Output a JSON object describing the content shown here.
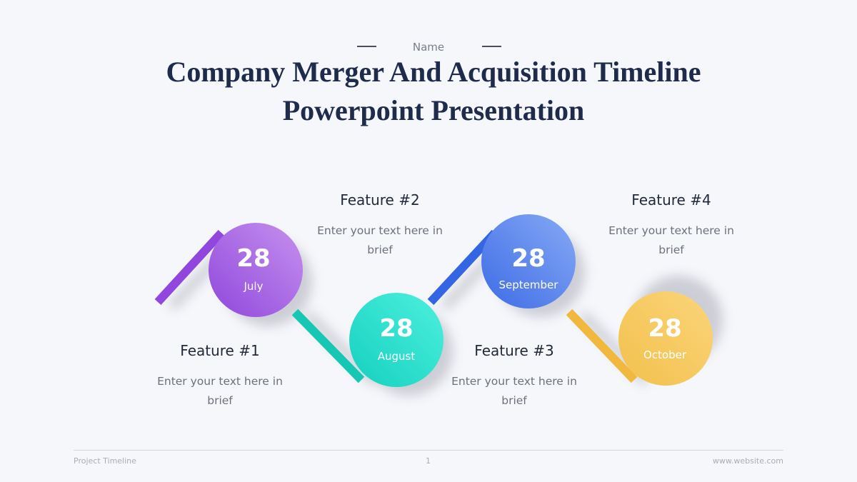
{
  "header": {
    "eyebrow": "Name",
    "title_line1": "Company Merger And Acquisition Timeline",
    "title_line2": "Powerpoint Presentation"
  },
  "milestones": [
    {
      "day": "28",
      "month": "July",
      "feature": "Feature #1",
      "text": "Enter your text here in brief",
      "color": "#9b55e0"
    },
    {
      "day": "28",
      "month": "August",
      "feature": "Feature #2",
      "text": "Enter your text here in brief",
      "color": "#22d6c4"
    },
    {
      "day": "28",
      "month": "September",
      "feature": "Feature #3",
      "text": "Enter your text here in brief",
      "color": "#4a78ea"
    },
    {
      "day": "28",
      "month": "October",
      "feature": "Feature #4",
      "text": "Enter your text here in brief",
      "color": "#f5c552"
    }
  ],
  "footer": {
    "left": "Project Timeline",
    "page": "1",
    "right": "www.website.com"
  }
}
